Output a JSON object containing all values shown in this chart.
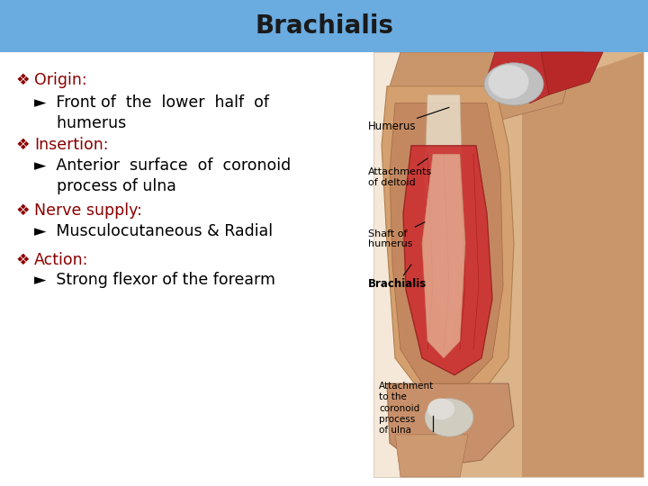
{
  "title": "Brachialis",
  "title_bg_color": "#6aabe0",
  "title_text_color": "#1a1a1a",
  "bg_color": "#ffffff",
  "bullet_color": "#8b0000",
  "text_color": "#000000",
  "items": [
    {
      "label": "Origin:",
      "sub_line1": "  Front of  the  lower  half  of",
      "sub_line2": "  humerus"
    },
    {
      "label": "Insertion:",
      "sub_line1": "  Anterior  surface  of  coronoid",
      "sub_line2": "  process of ulna"
    },
    {
      "label": "Nerve supply:",
      "sub_line1": "  Musculocutaneous & Radial",
      "sub_line2": null
    },
    {
      "label": "Action:",
      "sub_line1": "  Strong flexor of the forearm",
      "sub_line2": null
    }
  ],
  "title_fontsize": 20,
  "label_fontsize": 12.5,
  "sub_fontsize": 12.5,
  "diamond_symbol": "❖",
  "arrow_symbol": "►"
}
